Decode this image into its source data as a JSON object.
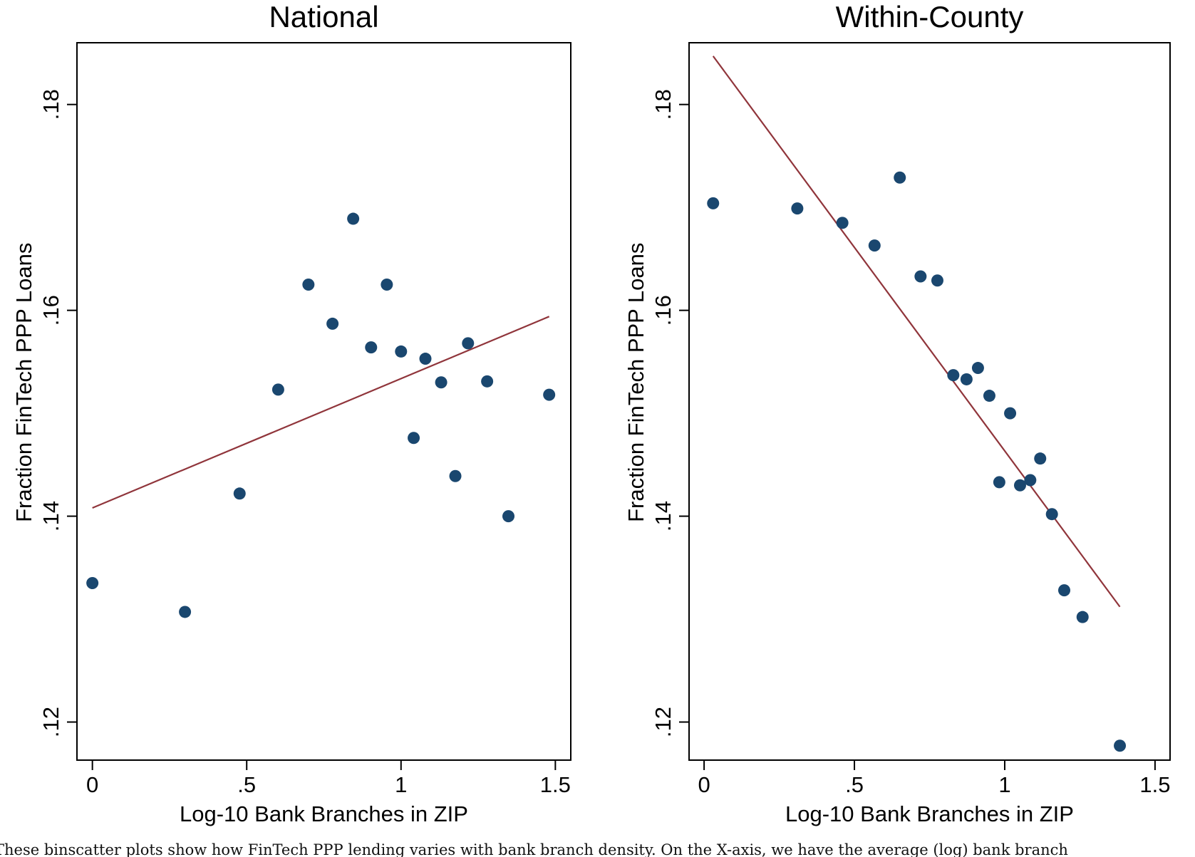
{
  "chart_data": [
    {
      "type": "scatter",
      "title": "National",
      "xlabel": "Log-10 Bank Branches in ZIP",
      "ylabel": "Fraction FinTech PPP Loans",
      "xlim": [
        -0.05,
        1.55
      ],
      "ylim": [
        0.1163,
        0.186
      ],
      "xticks": [
        0,
        0.5,
        1,
        1.5
      ],
      "xtick_labels": [
        "0",
        ".5",
        "1",
        "1.5"
      ],
      "yticks": [
        0.12,
        0.14,
        0.16,
        0.18
      ],
      "ytick_labels": [
        ".12",
        ".14",
        ".16",
        ".18"
      ],
      "grid": false,
      "marker_color": "#1a476f",
      "line_color": "#90353b",
      "points": [
        {
          "x": 0.0,
          "y": 0.1335
        },
        {
          "x": 0.3,
          "y": 0.1307
        },
        {
          "x": 0.477,
          "y": 0.1422
        },
        {
          "x": 0.602,
          "y": 0.1523
        },
        {
          "x": 0.7,
          "y": 0.1625
        },
        {
          "x": 0.778,
          "y": 0.1587
        },
        {
          "x": 0.845,
          "y": 0.1689
        },
        {
          "x": 0.903,
          "y": 0.1564
        },
        {
          "x": 0.954,
          "y": 0.1625
        },
        {
          "x": 1.0,
          "y": 0.156
        },
        {
          "x": 1.041,
          "y": 0.1476
        },
        {
          "x": 1.079,
          "y": 0.1553
        },
        {
          "x": 1.13,
          "y": 0.153
        },
        {
          "x": 1.176,
          "y": 0.1439
        },
        {
          "x": 1.217,
          "y": 0.1568
        },
        {
          "x": 1.279,
          "y": 0.1531
        },
        {
          "x": 1.348,
          "y": 0.14
        },
        {
          "x": 1.48,
          "y": 0.1518
        }
      ],
      "fit_line": {
        "x": [
          0.0,
          1.48
        ],
        "y": [
          0.1408,
          0.1594
        ]
      }
    },
    {
      "type": "scatter",
      "title": "Within-County",
      "xlabel": "Log-10 Bank Branches in ZIP",
      "ylabel": "Fraction FinTech PPP Loans",
      "xlim": [
        -0.05,
        1.55
      ],
      "ylim": [
        0.1163,
        0.186
      ],
      "xticks": [
        0,
        0.5,
        1,
        1.5
      ],
      "xtick_labels": [
        "0",
        ".5",
        "1",
        "1.5"
      ],
      "yticks": [
        0.12,
        0.14,
        0.16,
        0.18
      ],
      "ytick_labels": [
        ".12",
        ".14",
        ".16",
        ".18"
      ],
      "grid": false,
      "marker_color": "#1a476f",
      "line_color": "#90353b",
      "points": [
        {
          "x": 0.03,
          "y": 0.1704
        },
        {
          "x": 0.31,
          "y": 0.1699
        },
        {
          "x": 0.46,
          "y": 0.1685
        },
        {
          "x": 0.567,
          "y": 0.1663
        },
        {
          "x": 0.651,
          "y": 0.1729
        },
        {
          "x": 0.72,
          "y": 0.1633
        },
        {
          "x": 0.776,
          "y": 0.1629
        },
        {
          "x": 0.829,
          "y": 0.1537
        },
        {
          "x": 0.873,
          "y": 0.1533
        },
        {
          "x": 0.911,
          "y": 0.1544
        },
        {
          "x": 0.949,
          "y": 0.1517
        },
        {
          "x": 0.982,
          "y": 0.1433
        },
        {
          "x": 1.018,
          "y": 0.15
        },
        {
          "x": 1.051,
          "y": 0.143
        },
        {
          "x": 1.085,
          "y": 0.1435
        },
        {
          "x": 1.118,
          "y": 0.1456
        },
        {
          "x": 1.157,
          "y": 0.1402
        },
        {
          "x": 1.198,
          "y": 0.1328
        },
        {
          "x": 1.259,
          "y": 0.1302
        },
        {
          "x": 1.383,
          "y": 0.1177
        }
      ],
      "fit_line": {
        "x": [
          0.03,
          1.383
        ],
        "y": [
          0.1847,
          0.1312
        ]
      }
    }
  ],
  "caption": "These binscatter plots show how FinTech PPP lending varies with bank branch density. On the X-axis, we have the average (log) bank branch"
}
